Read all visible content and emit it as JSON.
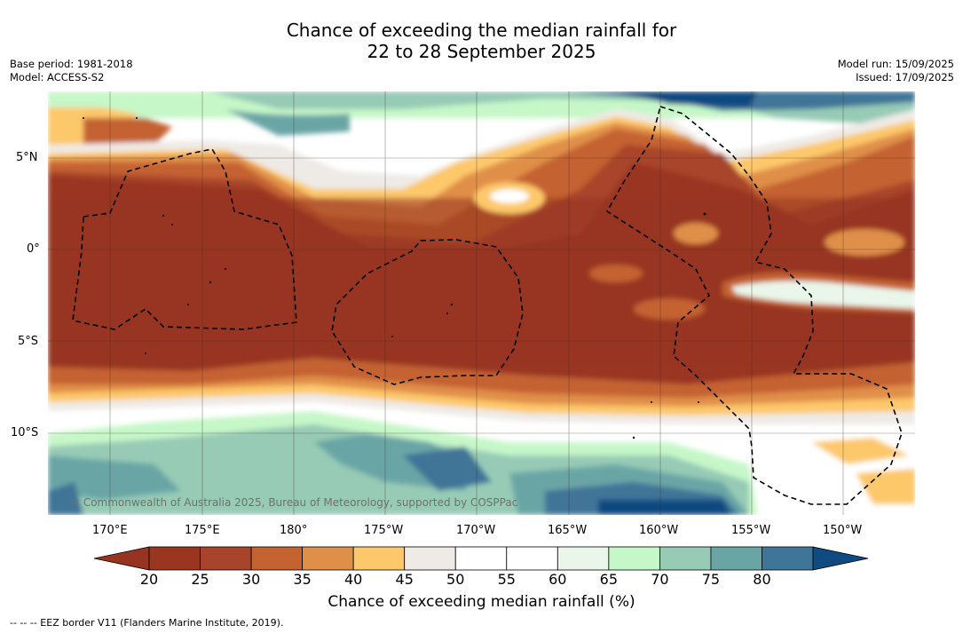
{
  "title_line1": "Chance of exceeding the median rainfall for",
  "title_line2": "22 to 28 September 2025",
  "base_period": "Base period: 1981-2018",
  "model": "Model: ACCESS-S2",
  "model_run": "Model run: 15/09/2025",
  "issued": "Issued: 17/09/2025",
  "lat_labels": [
    "5°N",
    "0°",
    "5°S",
    "10°S"
  ],
  "lon_labels": [
    "170°E",
    "175°E",
    "180°",
    "175°W",
    "170°W",
    "165°W",
    "160°W",
    "155°W",
    "150°W"
  ],
  "copyright": "© Commonwealth of Australia 2025, Bureau of Meteorology, supported by COSPPac",
  "colorbar": {
    "ticks": [
      "20",
      "25",
      "30",
      "35",
      "40",
      "45",
      "50",
      "55",
      "60",
      "65",
      "70",
      "75",
      "80"
    ],
    "colors": [
      "#9a3520",
      "#a8442b",
      "#c46232",
      "#e08f48",
      "#fdc86a",
      "#eeeae6",
      "#ffffff",
      "#ffffff",
      "#eaf6ea",
      "#c6f7c8",
      "#97cbb6",
      "#6aa5a6",
      "#3f7598"
    ],
    "under_color": "#963321",
    "over_color": "#0f4a80",
    "label": "Chance of exceeding median rainfall (%)"
  },
  "footnote": "--  --  -- EEZ border V11 (Flanders Marine Institute, 2019)."
}
